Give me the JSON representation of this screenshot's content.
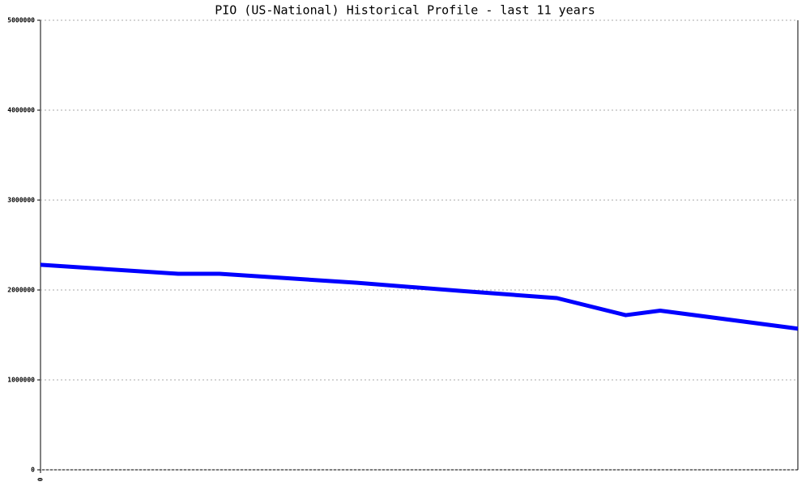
{
  "chart_data": {
    "type": "line",
    "title": "PIO (US-National) Historical Profile - last 11 years",
    "x": [
      0,
      2,
      2.6,
      4.6,
      6.1,
      7.5,
      8.5,
      9,
      11
    ],
    "series": [
      {
        "name": "PIO",
        "color": "#0000ff",
        "values": [
          2280000,
          2180000,
          2180000,
          2080000,
          1990000,
          1910000,
          1720000,
          1770000,
          1570000
        ]
      }
    ],
    "xlim": [
      0,
      11
    ],
    "xticks": [
      0
    ],
    "ylim": [
      0,
      5000000
    ],
    "yticks": [
      0,
      1000000,
      2000000,
      3000000,
      4000000,
      5000000
    ],
    "grid": true
  }
}
